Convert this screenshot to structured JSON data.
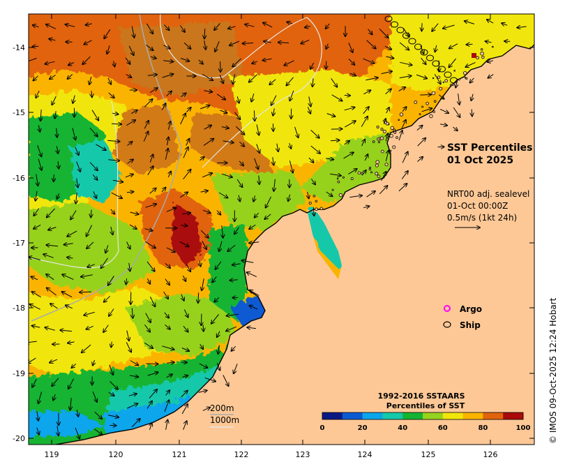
{
  "title": {
    "line1": "SST Percentiles",
    "line2": "01 Oct 2025"
  },
  "current_info": {
    "line1": "NRT00 adj. sealevel",
    "line2": "01-Oct 00:00Z",
    "line3": "0.5m/s (1kt 24h)"
  },
  "legend": {
    "argo": "Argo",
    "ship": "Ship",
    "argo_color": "#ff00ff",
    "ship_color": "#000000"
  },
  "isobaths": {
    "shallow": "200m",
    "deep": "1000m"
  },
  "colorbar": {
    "title_line1": "1992-2016 SSTAARS",
    "title_line2": "Percentiles of SST",
    "ticks": [
      "0",
      "20",
      "40",
      "60",
      "80",
      "100"
    ],
    "colors": [
      "#0a1a82",
      "#0a5ad2",
      "#0aa5eb",
      "#14c8aa",
      "#14b432",
      "#96d21e",
      "#f0e60a",
      "#fab400",
      "#e1640a",
      "#aa0a0a"
    ]
  },
  "axes": {
    "x_ticks": [
      "119",
      "120",
      "121",
      "122",
      "123",
      "124",
      "125",
      "126"
    ],
    "y_ticks": [
      "-14",
      "-15",
      "-16",
      "-17",
      "-18",
      "-19",
      "-20"
    ]
  },
  "credit": "© IMOS 09-Oct-2025 12:24 Hobart",
  "colors": {
    "land": "#fdc896",
    "ocean_base": "#fab400"
  }
}
